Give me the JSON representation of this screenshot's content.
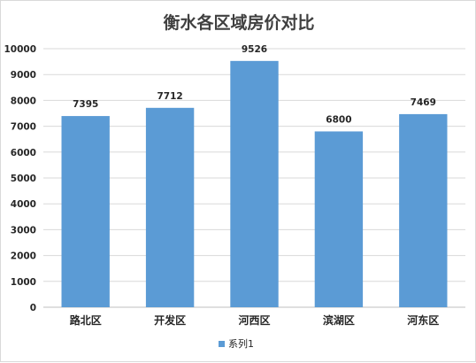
{
  "chart_data": {
    "type": "bar",
    "title": "衡水各区域房价对比",
    "categories": [
      "路北区",
      "开发区",
      "河西区",
      "滨湖区",
      "河东区"
    ],
    "series": [
      {
        "name": "系列1",
        "values": [
          7395,
          7712,
          9526,
          6800,
          7469
        ],
        "color": "#5b9bd5"
      }
    ],
    "ylim": [
      0,
      10000
    ],
    "yticks": [
      0,
      1000,
      2000,
      3000,
      4000,
      5000,
      6000,
      7000,
      8000,
      9000,
      10000
    ],
    "data_labels": [
      "7395",
      "7712",
      "9526",
      "6800",
      "7469"
    ],
    "grid": true,
    "legend_position": "bottom"
  }
}
